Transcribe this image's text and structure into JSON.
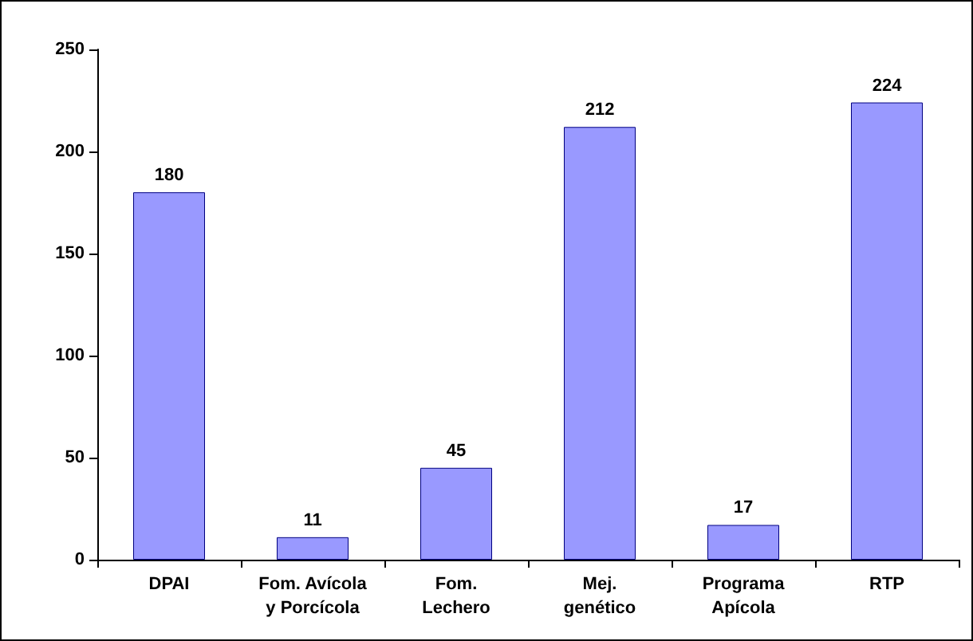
{
  "chart_data": {
    "type": "bar",
    "categories": [
      "DPAI",
      "Fom. Avícola\ny Porcícola",
      "Fom.\nLechero",
      "Mej.\ngenético",
      "Programa\nApícola",
      "RTP"
    ],
    "values": [
      180,
      11,
      45,
      212,
      17,
      224
    ],
    "color": "#9999ff",
    "ylim": [
      0,
      250
    ],
    "yticks": [
      0,
      50,
      100,
      150,
      200,
      250
    ],
    "grid": false,
    "data_labels": true
  }
}
